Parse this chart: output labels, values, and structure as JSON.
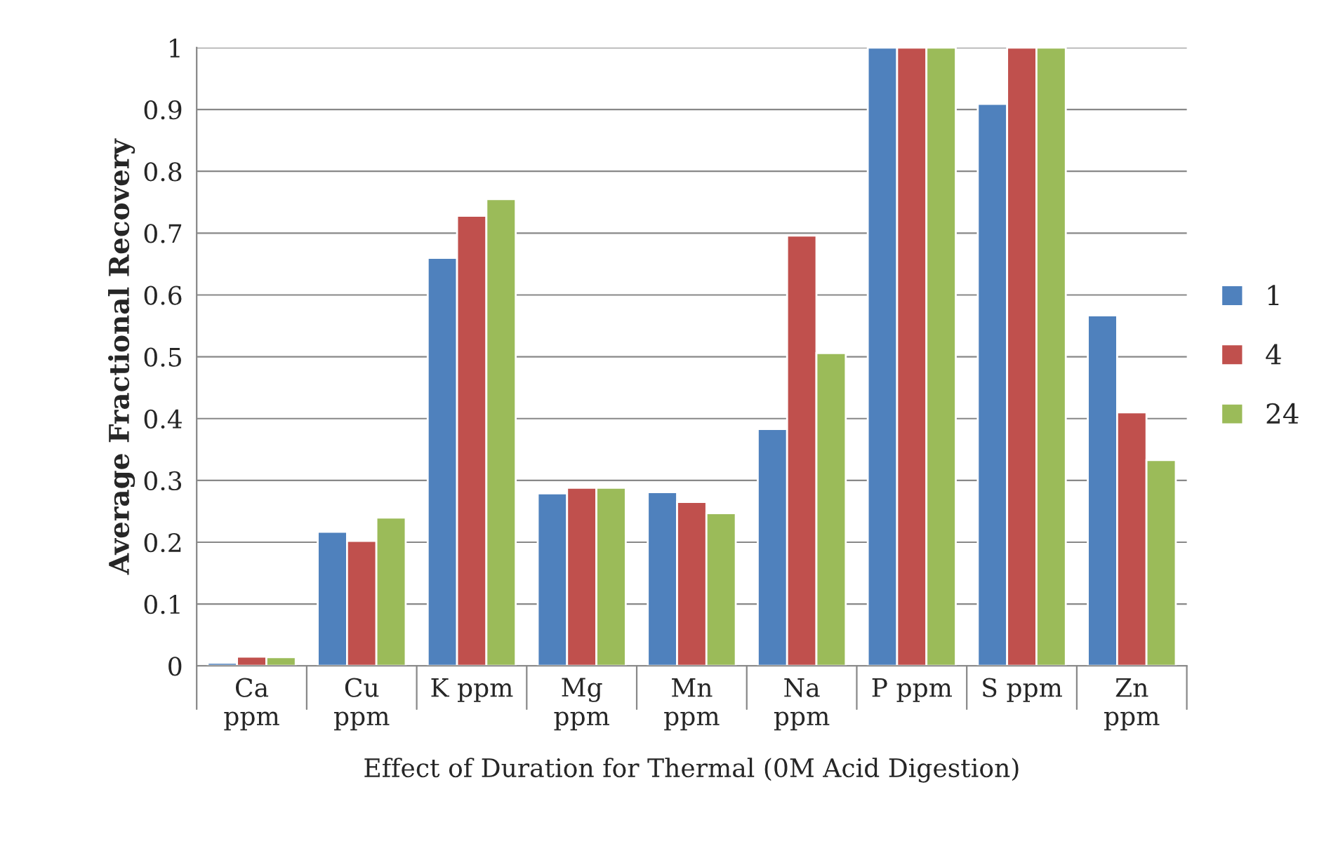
{
  "chart_data": {
    "type": "bar",
    "xlabel": "Effect of Duration for Thermal (0M Acid Digestion)",
    "ylabel": "Average Fractional Recovery",
    "categories": [
      "Ca ppm",
      "Cu ppm",
      "K ppm",
      "Mg ppm",
      "Mn ppm",
      "Na ppm",
      "P ppm",
      "S ppm",
      "Zn ppm"
    ],
    "series": [
      {
        "name": "1",
        "color": "#4f81bd",
        "values": [
          0.005,
          0.217,
          0.66,
          0.279,
          0.281,
          0.383,
          1,
          0.909,
          0.567
        ]
      },
      {
        "name": "4",
        "color": "#c0504d",
        "values": [
          0.015,
          0.202,
          0.728,
          0.288,
          0.265,
          0.696,
          1,
          1,
          0.41
        ]
      },
      {
        "name": "24",
        "color": "#9bbb59",
        "values": [
          0.014,
          0.24,
          0.755,
          0.288,
          0.247,
          0.506,
          1,
          1,
          0.333
        ]
      }
    ],
    "ylim": [
      0,
      1
    ],
    "yticks": [
      0,
      0.1,
      0.2,
      0.3,
      0.4,
      0.5,
      0.6,
      0.7,
      0.8,
      0.9,
      1
    ],
    "grid": "y",
    "legend": "right"
  }
}
